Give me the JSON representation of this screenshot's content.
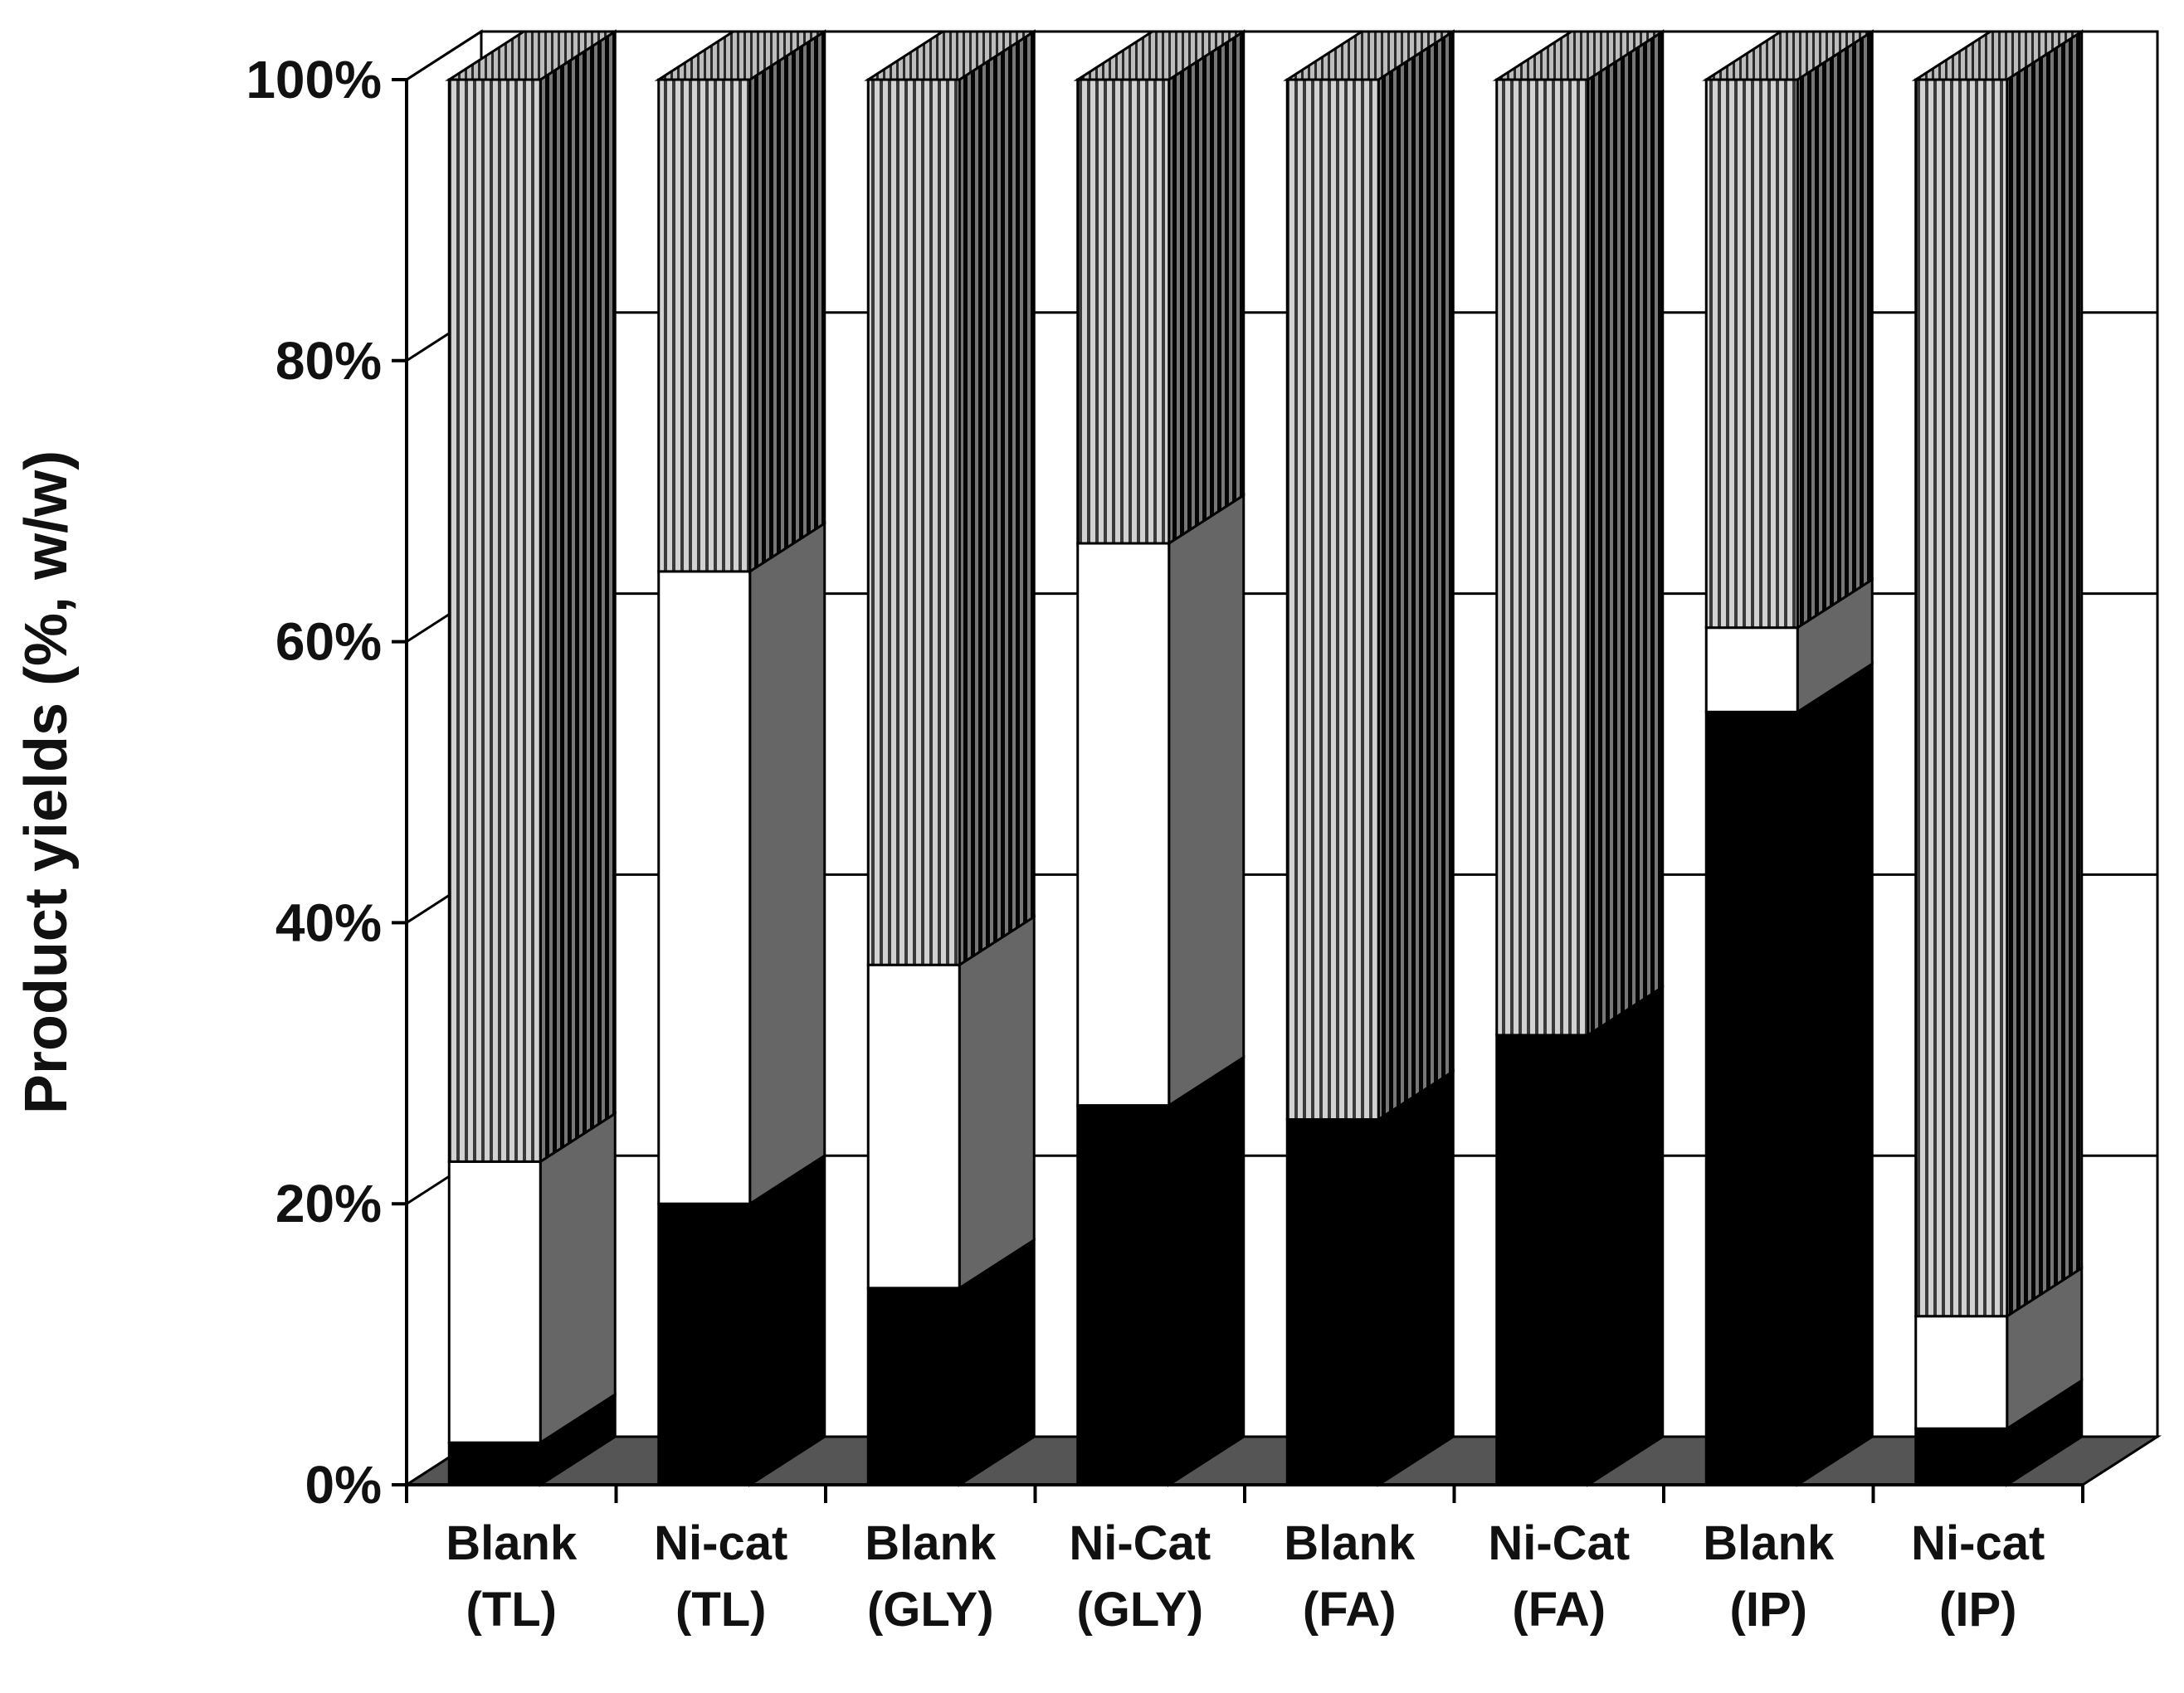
{
  "chart_data": {
    "type": "bar",
    "stacked": true,
    "three_d": true,
    "ylabel": "Product yields (%, w/w)",
    "xlabel": "",
    "ylim": [
      0,
      100
    ],
    "yticks": [
      "0%",
      "20%",
      "40%",
      "60%",
      "80%",
      "100%"
    ],
    "categories": [
      {
        "line1": "Blank",
        "line2": "(TL)"
      },
      {
        "line1": "Ni-cat",
        "line2": "(TL)"
      },
      {
        "line1": "Blank",
        "line2": "(GLY)"
      },
      {
        "line1": "Ni-Cat",
        "line2": "(GLY)"
      },
      {
        "line1": "Blank",
        "line2": "(FA)"
      },
      {
        "line1": "Ni-Cat",
        "line2": "(FA)"
      },
      {
        "line1": "Blank",
        "line2": "(IP)"
      },
      {
        "line1": "Ni-cat",
        "line2": "(IP)"
      }
    ],
    "series": [
      {
        "name": "bottom (solid black)",
        "fill": "solid",
        "color": "#000000",
        "values": [
          3,
          20,
          14,
          27,
          26,
          32,
          55,
          4
        ]
      },
      {
        "name": "middle (white)",
        "fill": "solid",
        "color": "#ffffff",
        "values": [
          20,
          45,
          23,
          40,
          0,
          0,
          6,
          8
        ]
      },
      {
        "name": "top (vertical hatched)",
        "fill": "hatch",
        "color": "#7a7a7a",
        "values": [
          77,
          35,
          63,
          33,
          74,
          68,
          39,
          88
        ]
      }
    ],
    "grid": true,
    "legend": "none"
  }
}
